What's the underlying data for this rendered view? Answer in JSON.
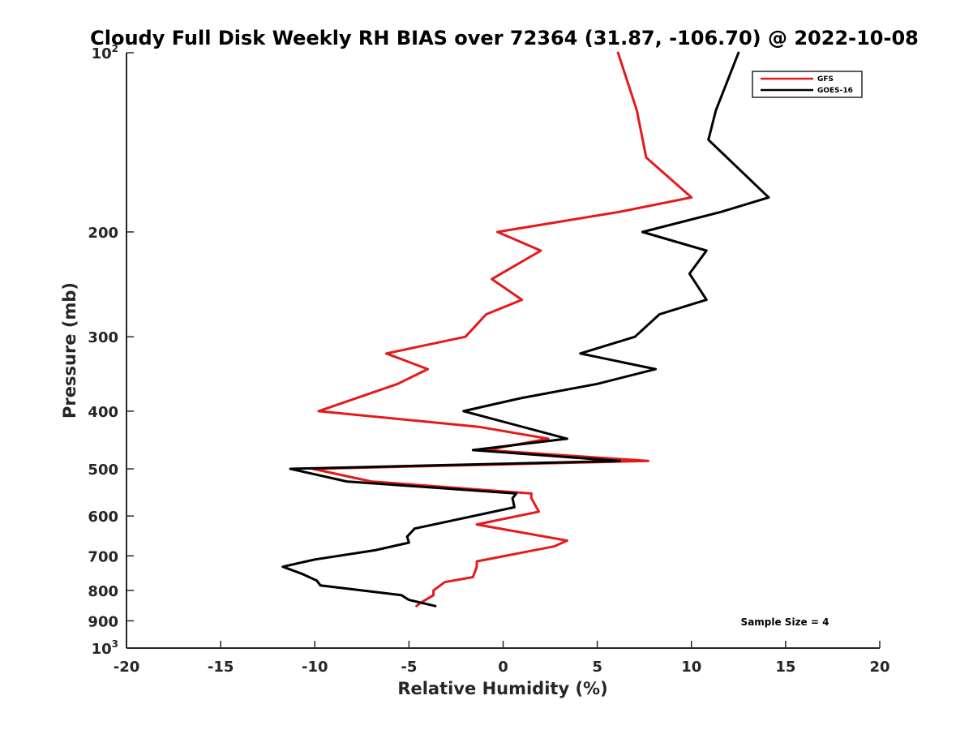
{
  "chart_data": {
    "type": "line",
    "title": "Cloudy Full Disk Weekly RH BIAS over 72364 (31.87, -106.70) @ 2022-10-08",
    "xlabel": "Relative Humidity (%)",
    "ylabel": "Pressure (mb)",
    "xlim": [
      -20,
      20
    ],
    "ylim": [
      100,
      1000
    ],
    "y_scale": "log",
    "y_reversed": true,
    "grid": false,
    "legend_position": "top-right",
    "annotation": "Sample Size = 4",
    "x_ticks": [
      -20,
      -15,
      -10,
      -5,
      0,
      5,
      10,
      15,
      20
    ],
    "x_tick_labels": [
      "-20",
      "-15",
      "-10",
      "-5",
      "0",
      "5",
      "10",
      "15",
      "20"
    ],
    "y_ticks": [
      100,
      200,
      300,
      400,
      500,
      600,
      700,
      800,
      900,
      1000
    ],
    "y_tick_labels": [
      "10^2",
      "200",
      "300",
      "400",
      "500",
      "600",
      "700",
      "800",
      "900",
      "10^3"
    ],
    "series": [
      {
        "name": "GFS",
        "color": "#e41a1c",
        "points": [
          [
            6.1,
            100
          ],
          [
            7.1,
            125
          ],
          [
            7.6,
            150
          ],
          [
            10.0,
            175
          ],
          [
            6.2,
            185
          ],
          [
            -0.3,
            200
          ],
          [
            2.0,
            215
          ],
          [
            -0.6,
            240
          ],
          [
            1.0,
            260
          ],
          [
            -0.9,
            275
          ],
          [
            -2.0,
            300
          ],
          [
            -6.2,
            320
          ],
          [
            -4.0,
            340
          ],
          [
            -5.6,
            360
          ],
          [
            -9.8,
            400
          ],
          [
            -1.3,
            425
          ],
          [
            2.4,
            445
          ],
          [
            -0.9,
            465
          ],
          [
            7.7,
            485
          ],
          [
            -10.1,
            500
          ],
          [
            -7.0,
            525
          ],
          [
            1.5,
            550
          ],
          [
            1.5,
            560
          ],
          [
            1.9,
            590
          ],
          [
            -1.4,
            620
          ],
          [
            3.4,
            660
          ],
          [
            2.7,
            675
          ],
          [
            -1.4,
            715
          ],
          [
            -1.4,
            730
          ],
          [
            -1.6,
            760
          ],
          [
            -3.1,
            775
          ],
          [
            -3.7,
            800
          ],
          [
            -3.7,
            815
          ],
          [
            -4.4,
            840
          ],
          [
            -4.6,
            850
          ]
        ]
      },
      {
        "name": "GOES-16",
        "color": "#000000",
        "points": [
          [
            12.5,
            100
          ],
          [
            11.3,
            125
          ],
          [
            10.9,
            140
          ],
          [
            14.1,
            175
          ],
          [
            11.6,
            185
          ],
          [
            7.4,
            200
          ],
          [
            10.8,
            215
          ],
          [
            9.9,
            235
          ],
          [
            10.8,
            260
          ],
          [
            8.3,
            275
          ],
          [
            7.0,
            300
          ],
          [
            4.1,
            320
          ],
          [
            8.1,
            340
          ],
          [
            5.0,
            360
          ],
          [
            1.0,
            380
          ],
          [
            -2.1,
            400
          ],
          [
            3.4,
            445
          ],
          [
            -1.6,
            465
          ],
          [
            6.2,
            485
          ],
          [
            -11.3,
            500
          ],
          [
            -8.3,
            525
          ],
          [
            0.7,
            550
          ],
          [
            0.5,
            560
          ],
          [
            0.6,
            580
          ],
          [
            -4.7,
            630
          ],
          [
            -5.1,
            650
          ],
          [
            -5.0,
            665
          ],
          [
            -6.8,
            685
          ],
          [
            -10.0,
            710
          ],
          [
            -11.7,
            730
          ],
          [
            -10.7,
            750
          ],
          [
            -9.9,
            770
          ],
          [
            -9.7,
            785
          ],
          [
            -5.4,
            815
          ],
          [
            -5.0,
            830
          ],
          [
            -3.6,
            850
          ]
        ]
      }
    ]
  }
}
